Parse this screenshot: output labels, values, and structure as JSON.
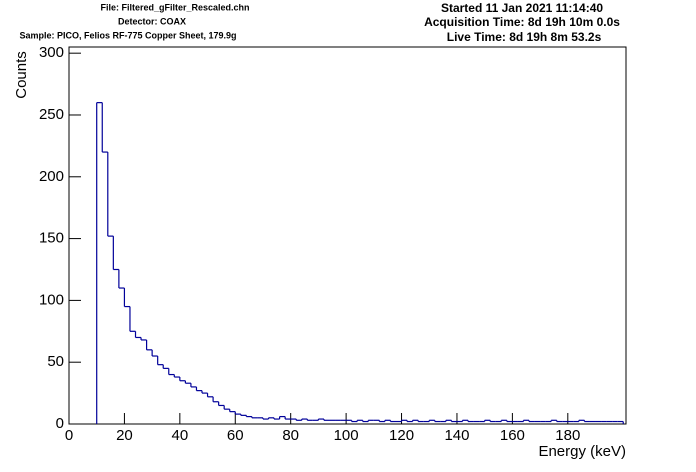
{
  "chart_data": {
    "type": "histogram",
    "file": "File: Filtered_gFilter_Rescaled.chn",
    "detector": "Detector: COAX",
    "sample": "Sample: PICO, Felios RF-775 Copper Sheet, 179.9g",
    "started": "Started 11 Jan 2021 11:14:40",
    "acquisition": "Acquisition Time: 8d 19h 10m 0.0s",
    "live_time": "Live Time: 8d 19h 8m 53.2s",
    "ylabel": "Counts",
    "xlabel": "Energy (keV)",
    "color": "#000099",
    "bins": [
      10,
      12,
      14,
      16,
      18,
      20,
      22,
      24,
      26,
      28,
      30,
      32,
      34,
      36,
      38,
      40,
      42,
      44,
      46,
      48,
      50,
      52,
      54,
      56,
      58,
      60,
      62,
      64,
      66,
      68,
      70,
      72,
      74,
      76,
      78,
      80,
      82,
      84,
      86,
      88,
      90,
      92,
      94,
      96,
      98,
      100,
      102,
      104,
      106,
      108,
      110,
      112,
      114,
      116,
      118,
      120,
      122,
      124,
      126,
      128,
      130,
      132,
      134,
      136,
      138,
      140,
      142,
      144,
      146,
      148,
      150,
      152,
      154,
      156,
      158,
      160,
      162,
      164,
      166,
      168,
      170,
      172,
      174,
      176,
      178,
      180,
      182,
      184,
      186,
      188,
      190,
      192,
      194,
      196,
      198,
      200
    ],
    "counts": [
      260,
      220,
      152,
      125,
      110,
      95,
      75,
      70,
      68,
      60,
      55,
      48,
      45,
      40,
      38,
      35,
      33,
      30,
      27,
      25,
      22,
      18,
      15,
      12,
      10,
      8,
      7,
      6,
      5,
      5,
      4,
      5,
      4,
      6,
      4,
      4,
      3,
      4,
      3,
      3,
      4,
      3,
      3,
      3,
      3,
      3,
      2,
      3,
      2,
      3,
      3,
      2,
      3,
      2,
      2,
      3,
      2,
      3,
      2,
      2,
      3,
      2,
      2,
      3,
      2,
      2,
      3,
      2,
      2,
      2,
      3,
      2,
      2,
      3,
      2,
      2,
      2,
      3,
      2,
      2,
      2,
      2,
      3,
      2,
      2,
      2,
      2,
      3,
      2,
      2,
      2,
      2,
      2,
      2,
      2
    ],
    "xlim": [
      0,
      201
    ],
    "ylim": [
      0,
      305
    ],
    "xticks": [
      0,
      20,
      40,
      60,
      80,
      100,
      120,
      140,
      160,
      180
    ],
    "yticks": [
      0,
      50,
      100,
      150,
      200,
      250,
      300
    ]
  }
}
